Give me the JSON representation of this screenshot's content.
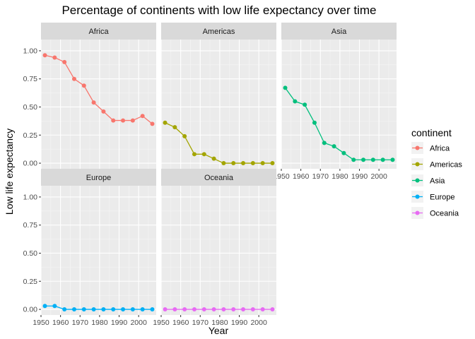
{
  "chart_data": {
    "type": "line",
    "title": "Percentage of continents with low life expectancy over time",
    "xlabel": "Year",
    "ylabel": "Low life expectancy",
    "x": [
      1952,
      1957,
      1962,
      1967,
      1972,
      1977,
      1982,
      1987,
      1992,
      1997,
      2002,
      2007
    ],
    "xlim": [
      1950,
      2009
    ],
    "ylim": [
      -0.05,
      1.1
    ],
    "x_ticks": [
      1950,
      1960,
      1970,
      1980,
      1990,
      2000
    ],
    "x_tick_labels": [
      "1950",
      "1960",
      "1970",
      "1980",
      "1990",
      "2000"
    ],
    "y_ticks": [
      0,
      0.25,
      0.5,
      0.75,
      1
    ],
    "y_tick_labels": [
      "0.00",
      "0.25",
      "0.50",
      "0.75",
      "1.00"
    ],
    "grid": true,
    "facet_layout": "3 columns, 2 rows",
    "legend": {
      "title": "continent",
      "position": "right",
      "entries": [
        {
          "name": "Africa",
          "color": "#F8766D"
        },
        {
          "name": "Americas",
          "color": "#A3A500"
        },
        {
          "name": "Asia",
          "color": "#00BF7D"
        },
        {
          "name": "Europe",
          "color": "#00B0F6"
        },
        {
          "name": "Oceania",
          "color": "#E76BF3"
        }
      ]
    },
    "series": [
      {
        "name": "Africa",
        "color": "#F8766D",
        "values": [
          0.96,
          0.94,
          0.9,
          0.75,
          0.69,
          0.54,
          0.46,
          0.38,
          0.38,
          0.38,
          0.42,
          0.35
        ]
      },
      {
        "name": "Americas",
        "color": "#A3A500",
        "values": [
          0.36,
          0.32,
          0.24,
          0.08,
          0.08,
          0.04,
          0.0,
          0.0,
          0.0,
          0.0,
          0.0,
          0.0
        ]
      },
      {
        "name": "Asia",
        "color": "#00BF7D",
        "values": [
          0.67,
          0.55,
          0.52,
          0.36,
          0.18,
          0.15,
          0.09,
          0.03,
          0.03,
          0.03,
          0.03,
          0.03
        ]
      },
      {
        "name": "Europe",
        "color": "#00B0F6",
        "values": [
          0.03,
          0.03,
          0.0,
          0.0,
          0.0,
          0.0,
          0.0,
          0.0,
          0.0,
          0.0,
          0.0,
          0.0
        ]
      },
      {
        "name": "Oceania",
        "color": "#E76BF3",
        "values": [
          0.0,
          0.0,
          0.0,
          0.0,
          0.0,
          0.0,
          0.0,
          0.0,
          0.0,
          0.0,
          0.0,
          0.0
        ]
      }
    ]
  }
}
